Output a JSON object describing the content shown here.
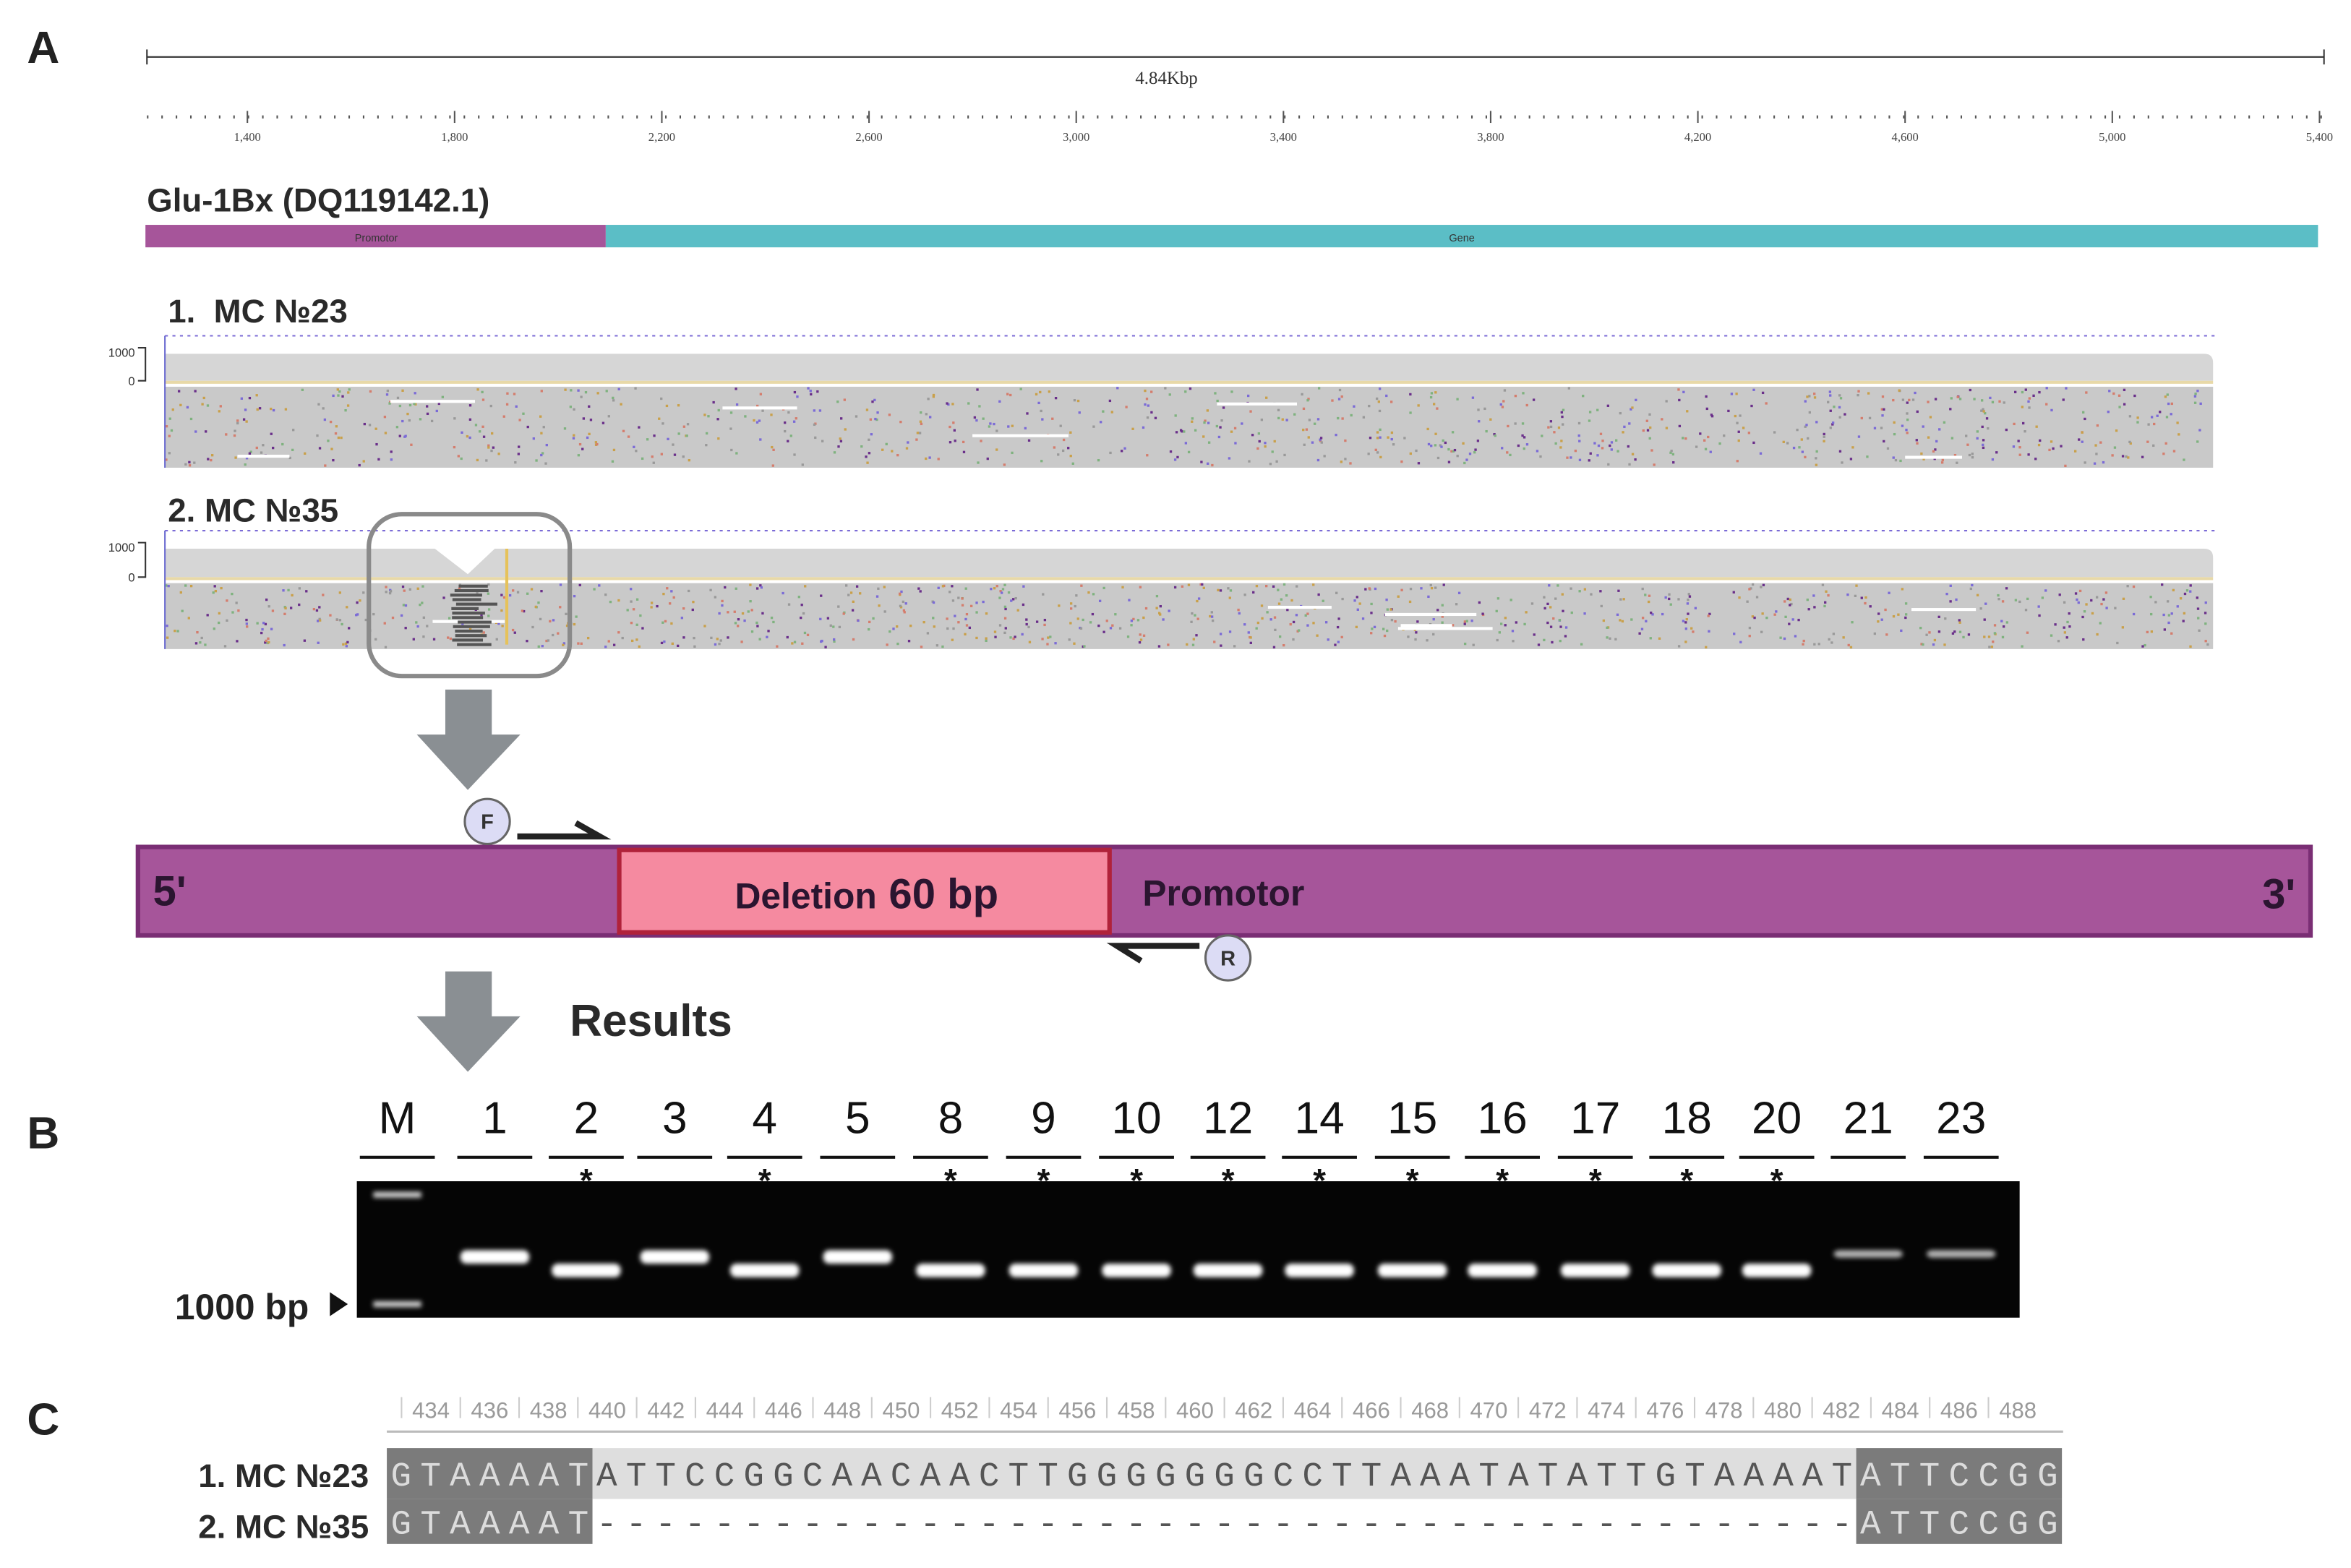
{
  "panel_a": {
    "label": "A",
    "scale_label": "4.84Kbp",
    "ruler_labels": [
      "1,400",
      "1,800",
      "2,200",
      "2,600",
      "3,000",
      "3,400",
      "3,800",
      "4,200",
      "4,600",
      "5,000",
      "5,400"
    ],
    "reference": {
      "title": "Glu-1Bx (DQ119142.1)",
      "segments": [
        "Promotor",
        "Gene"
      ]
    },
    "tracks": [
      {
        "title": "1.  MC №23",
        "axis_labels": [
          "1000",
          "0"
        ]
      },
      {
        "title": "2. MC №35",
        "axis_labels": [
          "1000",
          "0"
        ]
      }
    ],
    "schematic": {
      "five_prime": "5'",
      "deletion_label": "Deletion",
      "deletion_size": "60 bp",
      "region": "Promotor",
      "three_prime": "3'",
      "primer_forward": "F",
      "primer_reverse": "R"
    },
    "results_label": "Results"
  },
  "panel_b": {
    "label": "B",
    "lanes": [
      {
        "label": "M"
      },
      {
        "label": "1"
      },
      {
        "label": "2",
        "mark": "*"
      },
      {
        "label": "3"
      },
      {
        "label": "4",
        "mark": "*"
      },
      {
        "label": "5"
      },
      {
        "label": "8",
        "mark": "*"
      },
      {
        "label": "9",
        "mark": "*"
      },
      {
        "label": "10",
        "mark": "*"
      },
      {
        "label": "12",
        "mark": "*"
      },
      {
        "label": "14",
        "mark": "*"
      },
      {
        "label": "15",
        "mark": "*"
      },
      {
        "label": "16",
        "mark": "*"
      },
      {
        "label": "17",
        "mark": "*"
      },
      {
        "label": "18",
        "mark": "*"
      },
      {
        "label": "20",
        "mark": "*"
      },
      {
        "label": "21"
      },
      {
        "label": "23"
      }
    ],
    "marker_label": "1000 bp"
  },
  "panel_c": {
    "label": "C",
    "positions": [
      434,
      436,
      438,
      440,
      442,
      444,
      446,
      448,
      450,
      452,
      454,
      456,
      458,
      460,
      462,
      464,
      466,
      468,
      470,
      472,
      474,
      476,
      478,
      480,
      482,
      484,
      486,
      488
    ],
    "rows": [
      {
        "name": "1. MC №23",
        "left": "GTAAAAT",
        "middle": "ATTCCGGCAACAACTTGGGGGGGCCTTAAATATATTGTAAAAT",
        "right": "ATTCCGG"
      },
      {
        "name": "2. MC №35",
        "left": "GTAAAAT",
        "middle": "-------------------------------------------",
        "right": "ATTCCGG"
      }
    ]
  }
}
